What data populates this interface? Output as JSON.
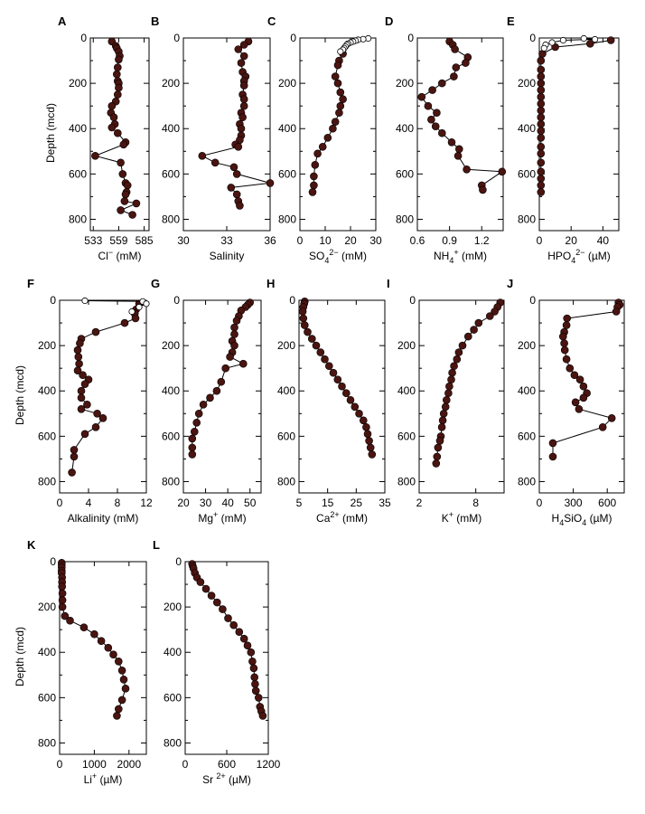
{
  "figure": {
    "y_axis_title": "Depth (mcd)"
  },
  "colors": {
    "filled_marker": "#4a1410",
    "open_marker": "#ffffff",
    "line": "#000000"
  },
  "chart_data": [
    {
      "id": "cl",
      "letter": "A",
      "type": "line",
      "xlim": [
        530,
        590
      ],
      "ylim": [
        0,
        850
      ],
      "xticks": [
        533,
        559,
        585
      ],
      "xlabel_parts": [
        "Cl",
        "−",
        " (mM)"
      ],
      "series": [
        {
          "x": [
            552,
            556,
            557,
            559,
            560,
            559,
            558,
            557,
            558,
            559,
            559,
            558,
            556,
            552,
            551,
            554,
            555,
            552,
            558,
            566,
            564,
            535,
            561,
            563,
            566,
            568,
            567,
            566,
            565,
            577,
            561,
            573
          ],
          "y": [
            15,
            35,
            45,
            60,
            80,
            95,
            130,
            160,
            190,
            200,
            220,
            250,
            280,
            300,
            330,
            350,
            380,
            395,
            420,
            460,
            470,
            520,
            550,
            600,
            640,
            650,
            680,
            690,
            720,
            730,
            760,
            780
          ]
        }
      ]
    },
    {
      "id": "sal",
      "letter": "B",
      "type": "line",
      "xlim": [
        30,
        36
      ],
      "ylim": [
        0,
        850
      ],
      "xticks": [
        30,
        33,
        36
      ],
      "xlabel_parts": [
        "Salinity",
        "",
        ""
      ],
      "series": [
        {
          "x": [
            34.5,
            34.2,
            33.8,
            34.2,
            34.0,
            34.1,
            34.3,
            34.2,
            34.2,
            34.1,
            34.2,
            34.2,
            34.0,
            34.1,
            33.9,
            34.0,
            34.0,
            33.9,
            33.6,
            33.8,
            31.3,
            32.2,
            33.5,
            33.7,
            36.0,
            33.3,
            33.7,
            33.8,
            33.9
          ],
          "y": [
            15,
            30,
            50,
            80,
            110,
            150,
            170,
            190,
            210,
            250,
            270,
            300,
            330,
            350,
            380,
            400,
            430,
            450,
            470,
            480,
            520,
            550,
            570,
            600,
            640,
            660,
            690,
            720,
            740
          ]
        }
      ]
    },
    {
      "id": "so4",
      "letter": "C",
      "type": "line",
      "xlim": [
        0,
        30
      ],
      "ylim": [
        0,
        850
      ],
      "xticks": [
        0,
        10,
        20,
        30
      ],
      "xlabel_parts": [
        "SO",
        "4",
        "2−",
        " (mM)"
      ],
      "series": [
        {
          "name": "",
          "marker": "filled",
          "x": [
            17,
            15.5,
            15,
            14,
            15,
            16,
            17,
            16,
            15.5,
            14,
            13,
            11,
            9,
            7,
            6,
            5.5,
            5.5,
            5
          ],
          "y": [
            70,
            100,
            120,
            170,
            200,
            240,
            270,
            300,
            330,
            370,
            400,
            440,
            480,
            510,
            560,
            610,
            650,
            680
          ]
        },
        {
          "name": "",
          "marker": "open",
          "x": [
            27,
            25,
            23,
            22,
            21,
            20,
            19,
            18.5,
            18,
            17.5,
            17,
            16
          ],
          "y": [
            2,
            5,
            8,
            12,
            16,
            20,
            25,
            30,
            38,
            45,
            52,
            60
          ]
        }
      ]
    },
    {
      "id": "nh4",
      "letter": "D",
      "type": "line",
      "xlim": [
        0.6,
        1.4
      ],
      "ylim": [
        0,
        850
      ],
      "xticks": [
        0.6,
        0.9,
        1.2
      ],
      "xlabel_parts": [
        "NH",
        "",
        "4",
        "+",
        " (mM)"
      ],
      "series": [
        {
          "x": [
            0.9,
            0.93,
            0.95,
            1.07,
            1.05,
            0.96,
            0.94,
            0.83,
            0.74,
            0.64,
            0.7,
            0.78,
            0.73,
            0.77,
            0.83,
            0.92,
            0.99,
            0.98,
            1.06,
            1.39,
            1.2,
            1.21
          ],
          "y": [
            15,
            30,
            50,
            85,
            110,
            130,
            170,
            200,
            230,
            260,
            300,
            330,
            360,
            390,
            420,
            460,
            490,
            520,
            580,
            590,
            650,
            670
          ]
        }
      ]
    },
    {
      "id": "hpo4",
      "letter": "E",
      "type": "line",
      "xlim": [
        0,
        50
      ],
      "ylim": [
        0,
        850
      ],
      "xticks": [
        0,
        20,
        40
      ],
      "xlabel_parts": [
        "HPO",
        "4",
        "2−",
        " (µM)"
      ],
      "series": [
        {
          "name": "",
          "marker": "filled",
          "x": [
            45,
            32,
            10,
            2,
            1,
            1,
            1,
            1,
            1,
            1,
            1,
            1,
            1,
            1,
            1,
            1,
            1,
            1,
            1,
            1,
            1,
            1,
            1
          ],
          "y": [
            10,
            25,
            40,
            70,
            100,
            140,
            170,
            200,
            230,
            260,
            290,
            320,
            350,
            380,
            410,
            440,
            480,
            510,
            550,
            590,
            620,
            650,
            680
          ]
        },
        {
          "name": "",
          "marker": "open",
          "x": [
            28,
            35,
            15,
            8,
            4,
            3
          ],
          "y": [
            2,
            6,
            10,
            20,
            30,
            45
          ]
        }
      ]
    },
    {
      "id": "alk",
      "letter": "F",
      "type": "line",
      "xlim": [
        0,
        12
      ],
      "ylim": [
        0,
        850
      ],
      "xticks": [
        0,
        4,
        8,
        12
      ],
      "xlabel_parts": [
        "Alkalinity (mM)",
        "",
        ""
      ],
      "series": [
        {
          "name": "",
          "marker": "filled",
          "x": [
            11.0,
            10.6,
            10.4,
            10.5,
            9.0,
            5.0,
            3.0,
            2.8,
            2.5,
            2.6,
            2.7,
            2.5,
            3.2,
            4.0,
            3.5,
            3.0,
            3.0,
            3.8,
            3.0,
            5.2,
            6.0,
            5.0,
            3.5,
            2.0,
            2.0,
            1.7
          ],
          "y": [
            15,
            40,
            60,
            80,
            100,
            140,
            170,
            190,
            220,
            250,
            280,
            310,
            330,
            350,
            370,
            400,
            430,
            460,
            480,
            500,
            520,
            560,
            590,
            660,
            690,
            760
          ]
        },
        {
          "name": "",
          "marker": "open",
          "x": [
            3.5,
            11.5,
            12.0,
            11.0,
            10.0
          ],
          "y": [
            2,
            5,
            15,
            30,
            50
          ]
        }
      ]
    },
    {
      "id": "mg",
      "letter": "G",
      "type": "line",
      "xlim": [
        20,
        55
      ],
      "ylim": [
        0,
        850
      ],
      "xticks": [
        20,
        30,
        40,
        50
      ],
      "xlabel_parts": [
        "Mg",
        "+",
        " (mM)"
      ],
      "series": [
        {
          "x": [
            50,
            49,
            48,
            46,
            45,
            44,
            43,
            43,
            42,
            43,
            42,
            41,
            47,
            39,
            37,
            35,
            32,
            29,
            27,
            26,
            25,
            24,
            24,
            24
          ],
          "y": [
            10,
            20,
            30,
            45,
            70,
            90,
            120,
            150,
            180,
            200,
            230,
            250,
            280,
            300,
            360,
            400,
            430,
            460,
            500,
            540,
            580,
            610,
            650,
            680
          ]
        }
      ]
    },
    {
      "id": "ca",
      "letter": "H",
      "type": "line",
      "xlim": [
        5,
        35
      ],
      "ylim": [
        0,
        850
      ],
      "xticks": [
        5,
        15,
        25,
        35
      ],
      "xlabel_parts": [
        "Ca",
        "2+",
        " (mM)"
      ],
      "series": [
        {
          "x": [
            7.0,
            6.8,
            6.5,
            6.3,
            6.5,
            7.0,
            8.0,
            9.5,
            11,
            12.5,
            14,
            15.5,
            17,
            18.5,
            20,
            21.5,
            23,
            24.5,
            26,
            27.5,
            28.5,
            29,
            29.5,
            30,
            30.5
          ],
          "y": [
            5,
            15,
            30,
            50,
            80,
            110,
            140,
            170,
            200,
            230,
            260,
            290,
            320,
            350,
            380,
            410,
            440,
            470,
            500,
            530,
            560,
            590,
            620,
            650,
            680
          ]
        }
      ]
    },
    {
      "id": "k",
      "letter": "I",
      "type": "line",
      "xlim": [
        2,
        11
      ],
      "ylim": [
        0,
        850
      ],
      "xticks": [
        2,
        8
      ],
      "xlabel_parts": [
        "K",
        "+",
        " (mM)"
      ],
      "series": [
        {
          "x": [
            10.6,
            10.3,
            10.0,
            9.5,
            8.3,
            7.8,
            7.2,
            6.6,
            6.2,
            6.0,
            5.7,
            5.5,
            5.4,
            5.2,
            5.1,
            4.9,
            4.8,
            4.6,
            4.5,
            4.4,
            4.3,
            4.2,
            4.0,
            3.9,
            3.8
          ],
          "y": [
            10,
            30,
            50,
            70,
            100,
            130,
            160,
            200,
            230,
            260,
            290,
            320,
            350,
            380,
            410,
            440,
            470,
            500,
            530,
            560,
            600,
            620,
            650,
            690,
            720
          ]
        }
      ]
    },
    {
      "id": "h4sio4",
      "letter": "J",
      "type": "line",
      "xlim": [
        0,
        750
      ],
      "ylim": [
        0,
        850
      ],
      "xticks": [
        0,
        300,
        600
      ],
      "xlabel_parts": [
        "H",
        "4",
        "SiO",
        "4",
        " (µM)"
      ],
      "series": [
        {
          "x": [
            700,
            710,
            690,
            680,
            245,
            240,
            220,
            210,
            220,
            225,
            240,
            270,
            310,
            360,
            390,
            420,
            390,
            320,
            350,
            640,
            560,
            120,
            120
          ],
          "y": [
            10,
            20,
            30,
            50,
            80,
            110,
            140,
            160,
            190,
            220,
            260,
            300,
            330,
            350,
            380,
            410,
            430,
            450,
            480,
            520,
            560,
            630,
            690
          ]
        }
      ]
    },
    {
      "id": "li",
      "letter": "K",
      "type": "line",
      "xlim": [
        0,
        2500
      ],
      "ylim": [
        0,
        850
      ],
      "xticks": [
        0,
        1000,
        2000
      ],
      "xlabel_parts": [
        "Li",
        "+",
        " (µM)"
      ],
      "series": [
        {
          "x": [
            60,
            60,
            60,
            60,
            60,
            70,
            70,
            70,
            80,
            80,
            80,
            150,
            300,
            700,
            1000,
            1200,
            1400,
            1550,
            1700,
            1800,
            1850,
            1900,
            1800,
            1700,
            1650
          ],
          "y": [
            5,
            15,
            25,
            40,
            50,
            70,
            90,
            110,
            140,
            170,
            200,
            240,
            260,
            290,
            320,
            350,
            380,
            410,
            440,
            480,
            520,
            560,
            610,
            650,
            680
          ]
        }
      ]
    },
    {
      "id": "sr",
      "letter": "L",
      "type": "line",
      "xlim": [
        0,
        1200
      ],
      "ylim": [
        0,
        850
      ],
      "xticks": [
        0,
        600,
        1200
      ],
      "xlabel_parts": [
        "Sr ",
        "2+",
        " (µM)"
      ],
      "series": [
        {
          "x": [
            100,
            110,
            120,
            140,
            170,
            220,
            300,
            380,
            460,
            540,
            620,
            700,
            780,
            850,
            900,
            950,
            970,
            990,
            1000,
            1010,
            1020,
            1060,
            1080,
            1100,
            1120
          ],
          "y": [
            10,
            20,
            30,
            50,
            70,
            90,
            120,
            150,
            180,
            210,
            250,
            280,
            310,
            340,
            370,
            400,
            440,
            470,
            510,
            540,
            570,
            600,
            640,
            660,
            680
          ]
        }
      ]
    }
  ]
}
